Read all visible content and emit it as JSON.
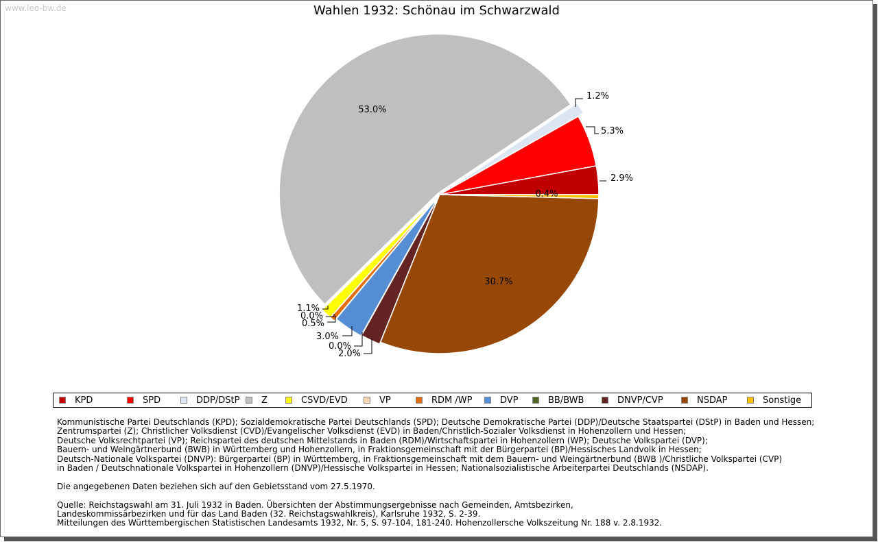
{
  "watermark": "www.leo-bw.de",
  "chart_data": {
    "type": "pie",
    "title": "Wahlen 1932: Schönau im Schwarzwald",
    "slices": [
      {
        "name": "KPD",
        "value": 2.9,
        "label": "2.9%",
        "color": "#c00000"
      },
      {
        "name": "SPD",
        "value": 5.3,
        "label": "5.3%",
        "color": "#ff0000"
      },
      {
        "name": "DDP/DStP",
        "value": 1.2,
        "label": "1.2%",
        "color": "#dce6f2"
      },
      {
        "name": "Z",
        "value": 53.0,
        "label": "53.0%",
        "color": "#bfbfbf"
      },
      {
        "name": "CSVD/EVD",
        "value": 1.1,
        "label": "1.1%",
        "color": "#ffff00"
      },
      {
        "name": "VP",
        "value": 0.0,
        "label": "0.0%",
        "color": "#fcd5b4"
      },
      {
        "name": "RDM /WP",
        "value": 0.5,
        "label": "0.5%",
        "color": "#e36c09"
      },
      {
        "name": "DVP",
        "value": 3.0,
        "label": "3.0%",
        "color": "#558ed5"
      },
      {
        "name": "BB/BWB",
        "value": 0.0,
        "label": "0.0%",
        "color": "#4f6228"
      },
      {
        "name": "DNVP/CVP",
        "value": 2.0,
        "label": "2.0%",
        "color": "#632423"
      },
      {
        "name": "NSDAP",
        "value": 30.7,
        "label": "30.7%",
        "color": "#974806"
      },
      {
        "name": "Sonstige",
        "value": 0.4,
        "label": "0.4%",
        "color": "#ffc000"
      }
    ]
  },
  "notes": {
    "parties": [
      "Kommunistische Partei Deutschlands (KPD); Sozialdemokratische Partei Deutschlands (SPD); Deutsche Demokratische Partei (DDP)/Deutsche Staatspartei (DStP) in Baden und Hessen;",
      "Zentrumspartei (Z); Christlicher Volksdienst (CVD)/Evangelischer Volksdienst (EVD) in Baden/Christlich-Sozialer Volksdienst in Hohenzollern und Hessen;",
      "Deutsche Volksrechtpartei (VP); Reichspartei des deutschen Mittelstands in Baden (RDM)/Wirtschaftspartei in Hohenzollern (WP); Deutsche Volkspartei (DVP);",
      "Bauern- und Weingärtnerbund (BWB) in Württemberg und Hohenzollern, in Fraktionsgemeinschaft mit der Bürgerpartei (BP)/Hessisches Landvolk in Hessen;",
      "Deutsch-Nationale Volkspartei (DNVP): Bürgerpartei (BP) in Württemberg, in Fraktionsgemeinschaft mit dem Bauern- und Weingärtnerbund (BWB )/Christliche Volkspartei (CVP)",
      "in Baden / Deutschnationale Volkspartei in Hohenzollern (DNVP)/Hessische Volkspartei in Hessen; Nationalsozialistische Arbeiterpartei Deutschlands (NSDAP)."
    ],
    "territory": "Die angegebenen Daten beziehen sich auf den Gebietsstand vom 27.5.1970.",
    "source": [
      "Quelle: Reichstagswahl am 31. Juli 1932 in Baden. Übersichten der Abstimmungsergebnisse nach Gemeinden, Amtsbezirken,",
      "Landeskommissärbezirken und für das Land Baden (32. Reichstagswahlkreis), Karlsruhe 1932, S. 2-39.",
      "Mitteilungen des Württembergischen Statistischen Landesamts 1932, Nr. 5, S. 97-104, 181-240. Hohenzollersche Volkszeitung Nr. 188 v. 2.8.1932."
    ]
  }
}
